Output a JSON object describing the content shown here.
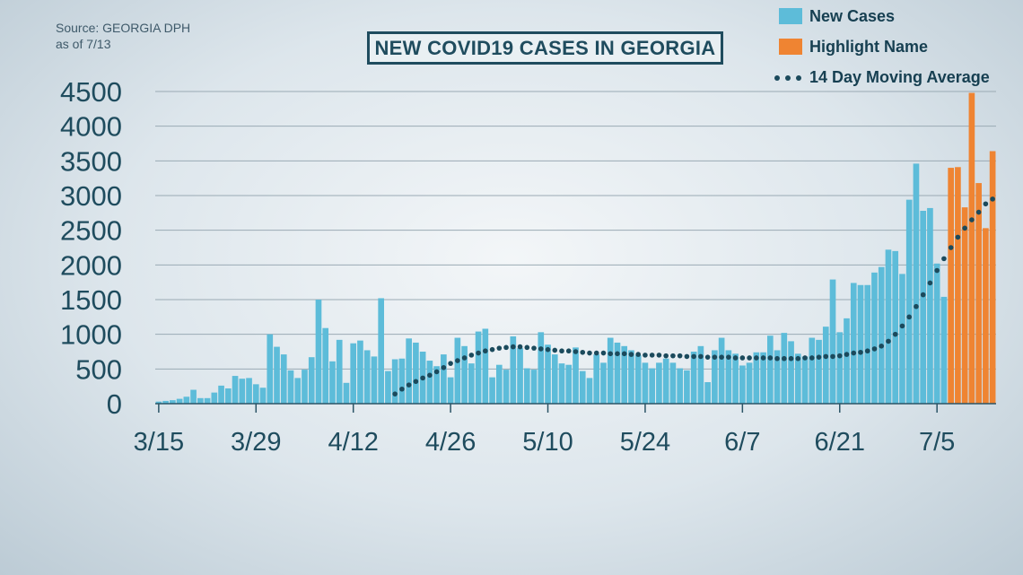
{
  "source": {
    "line1": "Source: GEORGIA DPH",
    "line2": "as of 7/13"
  },
  "chart_data": {
    "type": "bar",
    "title": "NEW COVID19 CASES IN GEORGIA",
    "xlabel": "",
    "ylabel": "",
    "ylim": [
      0,
      4500
    ],
    "yticks": [
      0,
      500,
      1000,
      1500,
      2000,
      2500,
      3000,
      3500,
      4000,
      4500
    ],
    "xtick_labels": [
      "3/15",
      "3/29",
      "4/12",
      "4/26",
      "5/10",
      "5/24",
      "6/7",
      "6/21",
      "7/5"
    ],
    "grid": "horizontal",
    "legend_position": "top-right",
    "series": [
      {
        "name": "New Cases",
        "color": "#5dbcd9",
        "values": [
          30,
          40,
          50,
          70,
          100,
          200,
          80,
          80,
          160,
          260,
          220,
          400,
          360,
          370,
          280,
          230,
          1000,
          820,
          710,
          480,
          370,
          490,
          670,
          1500,
          1090,
          610,
          920,
          300,
          870,
          910,
          770,
          680,
          1520,
          470,
          640,
          650,
          940,
          880,
          750,
          620,
          540,
          710,
          380,
          950,
          830,
          580,
          1040,
          1080,
          380,
          560,
          490,
          970,
          800,
          510,
          490,
          1030,
          850,
          710,
          580,
          560,
          810,
          470,
          370,
          710,
          590,
          950,
          880,
          830,
          770,
          700,
          590,
          510,
          590,
          650,
          590,
          510,
          480,
          750,
          830,
          310,
          770,
          950,
          770,
          720,
          550,
          590,
          740,
          740,
          980,
          770,
          1020,
          900,
          720,
          680,
          950,
          920,
          1110,
          1790,
          1030,
          1230,
          1740,
          1710,
          1710,
          1890,
          1970,
          2220,
          2200,
          1870,
          2940,
          3460,
          2780,
          2820,
          2020,
          1540
        ]
      },
      {
        "name": "Highlight Name",
        "color": "#ef8432",
        "values": [
          3400,
          3410,
          2830,
          4480,
          3180,
          2530,
          3640
        ]
      },
      {
        "name": "14 Day Moving Average",
        "color": "#1b4a5c",
        "style": "dotted-line",
        "values": [
          140,
          210,
          270,
          320,
          370,
          410,
          460,
          520,
          580,
          620,
          660,
          700,
          730,
          760,
          780,
          800,
          810,
          820,
          820,
          810,
          800,
          790,
          780,
          770,
          760,
          760,
          750,
          740,
          730,
          730,
          730,
          720,
          720,
          720,
          710,
          710,
          700,
          700,
          700,
          690,
          690,
          690,
          680,
          680,
          680,
          670,
          670,
          670,
          670,
          660,
          660,
          660,
          660,
          660,
          660,
          650,
          650,
          650,
          650,
          660,
          660,
          670,
          680,
          680,
          690,
          710,
          730,
          740,
          760,
          790,
          830,
          900,
          1000,
          1120,
          1250,
          1400,
          1570,
          1740,
          1920,
          2090,
          2250,
          2400,
          2530,
          2650,
          2760,
          2880,
          2950
        ]
      }
    ]
  }
}
